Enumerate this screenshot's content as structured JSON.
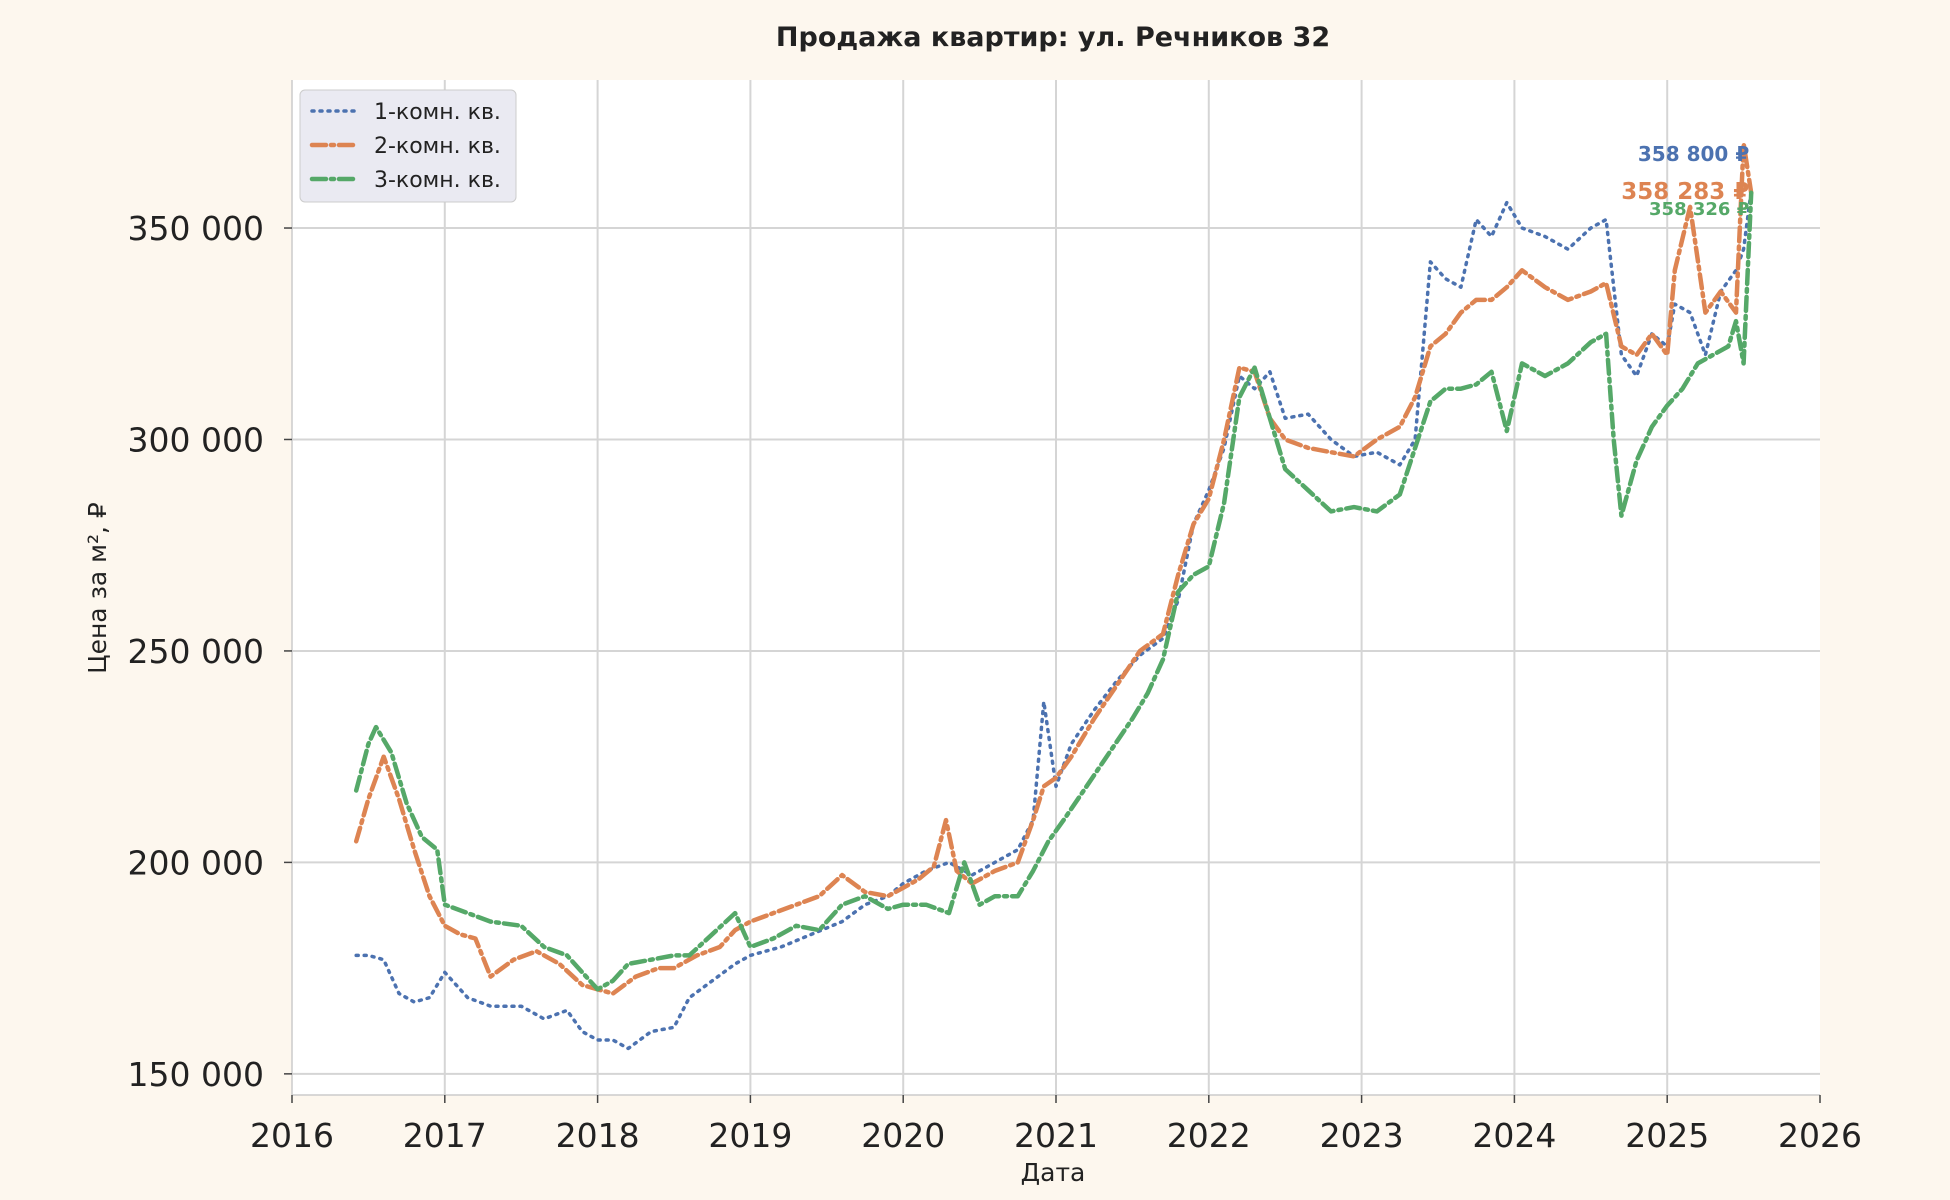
{
  "chart_data": {
    "type": "line",
    "title": "Продажа квартир: ул. Речников 32",
    "xlabel": "Дата",
    "ylabel": "Цена за м², ₽",
    "xlim": [
      2016,
      2026
    ],
    "ylim": [
      145000,
      385000
    ],
    "x_ticks": [
      "2016",
      "2017",
      "2018",
      "2019",
      "2020",
      "2021",
      "2022",
      "2023",
      "2024",
      "2025",
      "2026"
    ],
    "y_ticks": [
      {
        "value": 150000,
        "label": "150 000"
      },
      {
        "value": 200000,
        "label": "200 000"
      },
      {
        "value": 250000,
        "label": "250 000"
      },
      {
        "value": 300000,
        "label": "300 000"
      },
      {
        "value": 350000,
        "label": "350 000"
      }
    ],
    "grid": true,
    "legend_position": "top-left",
    "series": [
      {
        "name": "1-комн. кв.",
        "color": "#4c72b0",
        "style": "dotted",
        "end_label": "358 800 ₽",
        "x": [
          2016.42,
          2016.5,
          2016.6,
          2016.7,
          2016.8,
          2016.9,
          2017.0,
          2017.15,
          2017.3,
          2017.5,
          2017.65,
          2017.8,
          2017.9,
          2018.0,
          2018.1,
          2018.2,
          2018.35,
          2018.5,
          2018.6,
          2018.75,
          2018.9,
          2019.0,
          2019.2,
          2019.4,
          2019.6,
          2019.75,
          2019.9,
          2020.0,
          2020.15,
          2020.3,
          2020.45,
          2020.6,
          2020.75,
          2020.85,
          2020.92,
          2021.0,
          2021.1,
          2021.25,
          2021.4,
          2021.55,
          2021.7,
          2021.8,
          2021.9,
          2022.0,
          2022.1,
          2022.2,
          2022.3,
          2022.4,
          2022.5,
          2022.65,
          2022.8,
          2022.95,
          2023.1,
          2023.25,
          2023.35,
          2023.45,
          2023.55,
          2023.65,
          2023.75,
          2023.85,
          2023.95,
          2024.05,
          2024.2,
          2024.35,
          2024.5,
          2024.6,
          2024.7,
          2024.8,
          2024.9,
          2025.0,
          2025.05,
          2025.15,
          2025.25,
          2025.35,
          2025.45,
          2025.5,
          2025.55
        ],
        "y": [
          178000,
          178000,
          177000,
          169000,
          167000,
          168000,
          174000,
          168000,
          166000,
          166000,
          163000,
          165000,
          160000,
          158000,
          158000,
          156000,
          160000,
          161000,
          168000,
          172000,
          176000,
          178000,
          180000,
          183000,
          186000,
          190000,
          192000,
          195000,
          198000,
          200000,
          197000,
          200000,
          203000,
          210000,
          238000,
          218000,
          228000,
          236000,
          243000,
          249000,
          253000,
          262000,
          280000,
          288000,
          298000,
          315000,
          312000,
          316000,
          305000,
          306000,
          300000,
          296000,
          297000,
          294000,
          300000,
          342000,
          338000,
          336000,
          352000,
          348000,
          356000,
          350000,
          348000,
          345000,
          350000,
          352000,
          320000,
          315000,
          325000,
          322000,
          332000,
          330000,
          320000,
          335000,
          340000,
          345000,
          358800
        ]
      },
      {
        "name": "2-комн. кв.",
        "color": "#dd8452",
        "style": "dash-dot",
        "end_label": "358 283 ₽",
        "x": [
          2016.42,
          2016.5,
          2016.6,
          2016.7,
          2016.8,
          2016.9,
          2017.0,
          2017.1,
          2017.2,
          2017.3,
          2017.45,
          2017.6,
          2017.75,
          2017.9,
          2018.0,
          2018.1,
          2018.25,
          2018.4,
          2018.5,
          2018.65,
          2018.8,
          2018.9,
          2019.0,
          2019.15,
          2019.3,
          2019.45,
          2019.6,
          2019.75,
          2019.9,
          2020.0,
          2020.1,
          2020.2,
          2020.28,
          2020.35,
          2020.45,
          2020.6,
          2020.75,
          2020.85,
          2020.92,
          2021.0,
          2021.1,
          2021.25,
          2021.4,
          2021.55,
          2021.7,
          2021.8,
          2021.9,
          2022.0,
          2022.1,
          2022.2,
          2022.3,
          2022.4,
          2022.5,
          2022.65,
          2022.8,
          2022.95,
          2023.1,
          2023.25,
          2023.35,
          2023.45,
          2023.55,
          2023.65,
          2023.75,
          2023.85,
          2023.95,
          2024.05,
          2024.2,
          2024.35,
          2024.5,
          2024.6,
          2024.7,
          2024.8,
          2024.9,
          2025.0,
          2025.05,
          2025.15,
          2025.25,
          2025.35,
          2025.45,
          2025.5,
          2025.55
        ],
        "y": [
          205000,
          215000,
          225000,
          215000,
          203000,
          192000,
          185000,
          183000,
          182000,
          173000,
          177000,
          179000,
          176000,
          171000,
          170000,
          169000,
          173000,
          175000,
          175000,
          178000,
          180000,
          184000,
          186000,
          188000,
          190000,
          192000,
          197000,
          193000,
          192000,
          194000,
          196000,
          199000,
          210000,
          198000,
          195000,
          198000,
          200000,
          210000,
          218000,
          220000,
          225000,
          234000,
          242000,
          250000,
          254000,
          268000,
          280000,
          286000,
          300000,
          317000,
          316000,
          305000,
          300000,
          298000,
          297000,
          296000,
          300000,
          303000,
          310000,
          322000,
          325000,
          330000,
          333000,
          333000,
          336000,
          340000,
          336000,
          333000,
          335000,
          337000,
          322000,
          320000,
          325000,
          320000,
          340000,
          355000,
          330000,
          335000,
          330000,
          370000,
          358283
        ]
      },
      {
        "name": "3-комн. кв.",
        "color": "#55a868",
        "style": "dash-dot",
        "end_label": "358 326 ₽",
        "x": [
          2016.42,
          2016.5,
          2016.55,
          2016.65,
          2016.75,
          2016.85,
          2016.95,
          2017.0,
          2017.15,
          2017.3,
          2017.5,
          2017.65,
          2017.8,
          2017.9,
          2018.0,
          2018.1,
          2018.2,
          2018.35,
          2018.5,
          2018.6,
          2018.75,
          2018.9,
          2019.0,
          2019.15,
          2019.3,
          2019.45,
          2019.6,
          2019.75,
          2019.9,
          2020.0,
          2020.15,
          2020.3,
          2020.4,
          2020.5,
          2020.6,
          2020.75,
          2020.85,
          2020.95,
          2021.05,
          2021.2,
          2021.35,
          2021.5,
          2021.6,
          2021.7,
          2021.8,
          2021.9,
          2022.0,
          2022.1,
          2022.2,
          2022.3,
          2022.4,
          2022.5,
          2022.65,
          2022.8,
          2022.95,
          2023.1,
          2023.25,
          2023.35,
          2023.45,
          2023.55,
          2023.65,
          2023.75,
          2023.85,
          2023.95,
          2024.05,
          2024.2,
          2024.35,
          2024.5,
          2024.6,
          2024.65,
          2024.7,
          2024.8,
          2024.9,
          2025.0,
          2025.1,
          2025.2,
          2025.3,
          2025.4,
          2025.45,
          2025.5,
          2025.55
        ],
        "y": [
          217000,
          228000,
          232000,
          226000,
          214000,
          206000,
          203000,
          190000,
          188000,
          186000,
          185000,
          180000,
          178000,
          174000,
          170000,
          172000,
          176000,
          177000,
          178000,
          178000,
          183000,
          188000,
          180000,
          182000,
          185000,
          184000,
          190000,
          192000,
          189000,
          190000,
          190000,
          188000,
          200000,
          190000,
          192000,
          192000,
          198000,
          205000,
          210000,
          218000,
          226000,
          234000,
          240000,
          248000,
          264000,
          268000,
          270000,
          285000,
          310000,
          317000,
          305000,
          293000,
          288000,
          283000,
          284000,
          283000,
          287000,
          298000,
          309000,
          312000,
          312000,
          313000,
          316000,
          302000,
          318000,
          315000,
          318000,
          323000,
          325000,
          300000,
          282000,
          295000,
          303000,
          308000,
          312000,
          318000,
          320000,
          322000,
          328000,
          318000,
          358326
        ]
      }
    ]
  }
}
